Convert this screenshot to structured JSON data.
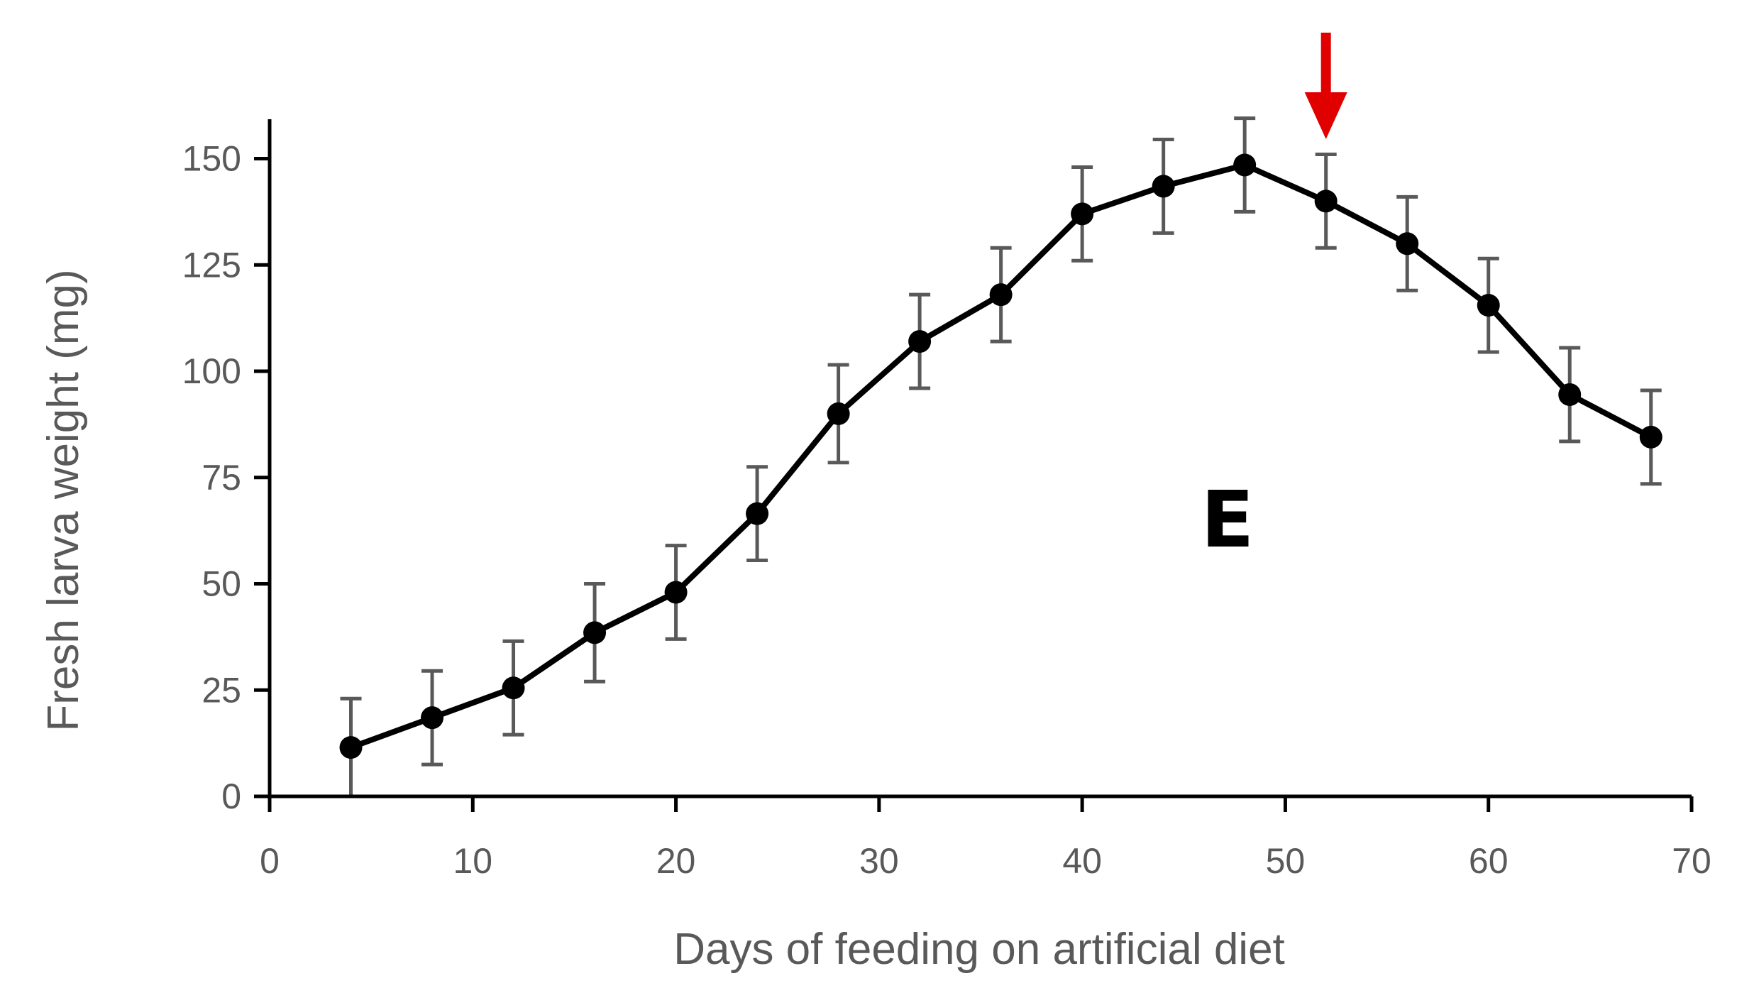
{
  "chart_data": {
    "type": "line",
    "title": "",
    "panel_label": "E",
    "xlabel": "Days of feeding on artificial diet",
    "ylabel": "Fresh larva weight (mg)",
    "xlim": [
      0,
      70
    ],
    "ylim": [
      0,
      160
    ],
    "xticks": [
      0,
      10,
      20,
      30,
      40,
      50,
      60,
      70
    ],
    "yticks": [
      0,
      25,
      50,
      75,
      100,
      125,
      150
    ],
    "grid": false,
    "series": [
      {
        "name": "Fresh larva weight",
        "x": [
          4,
          8,
          12,
          16,
          20,
          24,
          28,
          32,
          36,
          40,
          44,
          48,
          52,
          56,
          60,
          64,
          68
        ],
        "y": [
          11.5,
          18.5,
          25.5,
          38.5,
          48,
          66.5,
          90,
          107,
          118,
          137,
          143.5,
          148.5,
          140,
          130,
          115.5,
          94.5,
          84.5
        ],
        "error": [
          11.5,
          11,
          11,
          11.5,
          11,
          11,
          11.5,
          11,
          11,
          11,
          11,
          11,
          11,
          11,
          11,
          11,
          11
        ]
      }
    ],
    "annotation": {
      "type": "arrow",
      "x": 52,
      "color": "#e00000",
      "direction": "down"
    },
    "colors": {
      "line": "#000000",
      "errorbar": "#595959",
      "axis": "#000000",
      "text": "#595959",
      "arrow": "#e00000"
    }
  }
}
